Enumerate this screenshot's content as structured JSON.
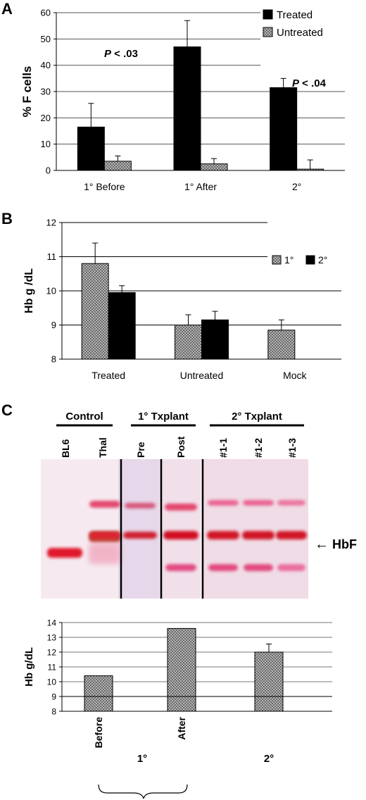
{
  "panels": [
    {
      "letter": "A"
    },
    {
      "letter": "B"
    },
    {
      "letter": "C"
    }
  ],
  "chart_data": [
    {
      "type": "bar",
      "panel": "A",
      "title": "",
      "xlabel": "",
      "ylabel": "% F cells",
      "ylim": [
        0,
        60
      ],
      "yticks": [
        0,
        10,
        20,
        30,
        40,
        50,
        60
      ],
      "categories": [
        "1° Before",
        "1° After",
        "2°"
      ],
      "series": [
        {
          "name": "Treated",
          "values": [
            16.5,
            47,
            31.5
          ],
          "errors": [
            9,
            10,
            3.5
          ],
          "color": "#000000",
          "pattern": "solid"
        },
        {
          "name": "Untreated",
          "values": [
            3.5,
            2.5,
            0.5
          ],
          "errors": [
            2,
            2,
            3.5
          ],
          "color": "#8c8c8c",
          "pattern": "checker"
        }
      ],
      "annotations": [
        "P < .03",
        "P < .04"
      ],
      "legend_position": "top-right",
      "grid": true
    },
    {
      "type": "bar",
      "panel": "B",
      "title": "",
      "xlabel": "",
      "ylabel": "Hb g /dL",
      "ylim": [
        8,
        12
      ],
      "yticks": [
        8,
        9,
        10,
        11,
        12
      ],
      "categories": [
        "Treated",
        "Untreated",
        "Mock"
      ],
      "series": [
        {
          "name": "1°",
          "values": [
            10.8,
            9.0,
            8.85
          ],
          "errors": [
            0.6,
            0.3,
            0.3
          ],
          "color": "#8c8c8c",
          "pattern": "checker"
        },
        {
          "name": "2°",
          "values": [
            9.95,
            9.15,
            null
          ],
          "errors": [
            0.2,
            0.25,
            null
          ],
          "color": "#000000",
          "pattern": "solid"
        }
      ],
      "legend_position": "top-right",
      "grid": true
    },
    {
      "type": "bar",
      "panel": "C",
      "title": "",
      "xlabel": "",
      "ylabel": "Hb g/dL",
      "ylim": [
        8,
        14
      ],
      "yticks": [
        8,
        9,
        10,
        11,
        12,
        13,
        14
      ],
      "categories": [
        "Before",
        "After",
        "2°"
      ],
      "group_labels": [
        "1°"
      ],
      "series": [
        {
          "name": "",
          "values": [
            10.4,
            13.6,
            12.0
          ],
          "errors": [
            null,
            null,
            0.55
          ],
          "color": "#8c8c8c",
          "pattern": "checker"
        }
      ],
      "grid": true
    }
  ],
  "gel": {
    "groups": [
      "Control",
      "1° Txplant",
      "2° Txplant"
    ],
    "lanes": [
      "BL6",
      "Thal",
      "Pre",
      "Post",
      "#1-1",
      "#1-2",
      "#1-3"
    ],
    "band_label": "HbF",
    "arrow": "←"
  }
}
